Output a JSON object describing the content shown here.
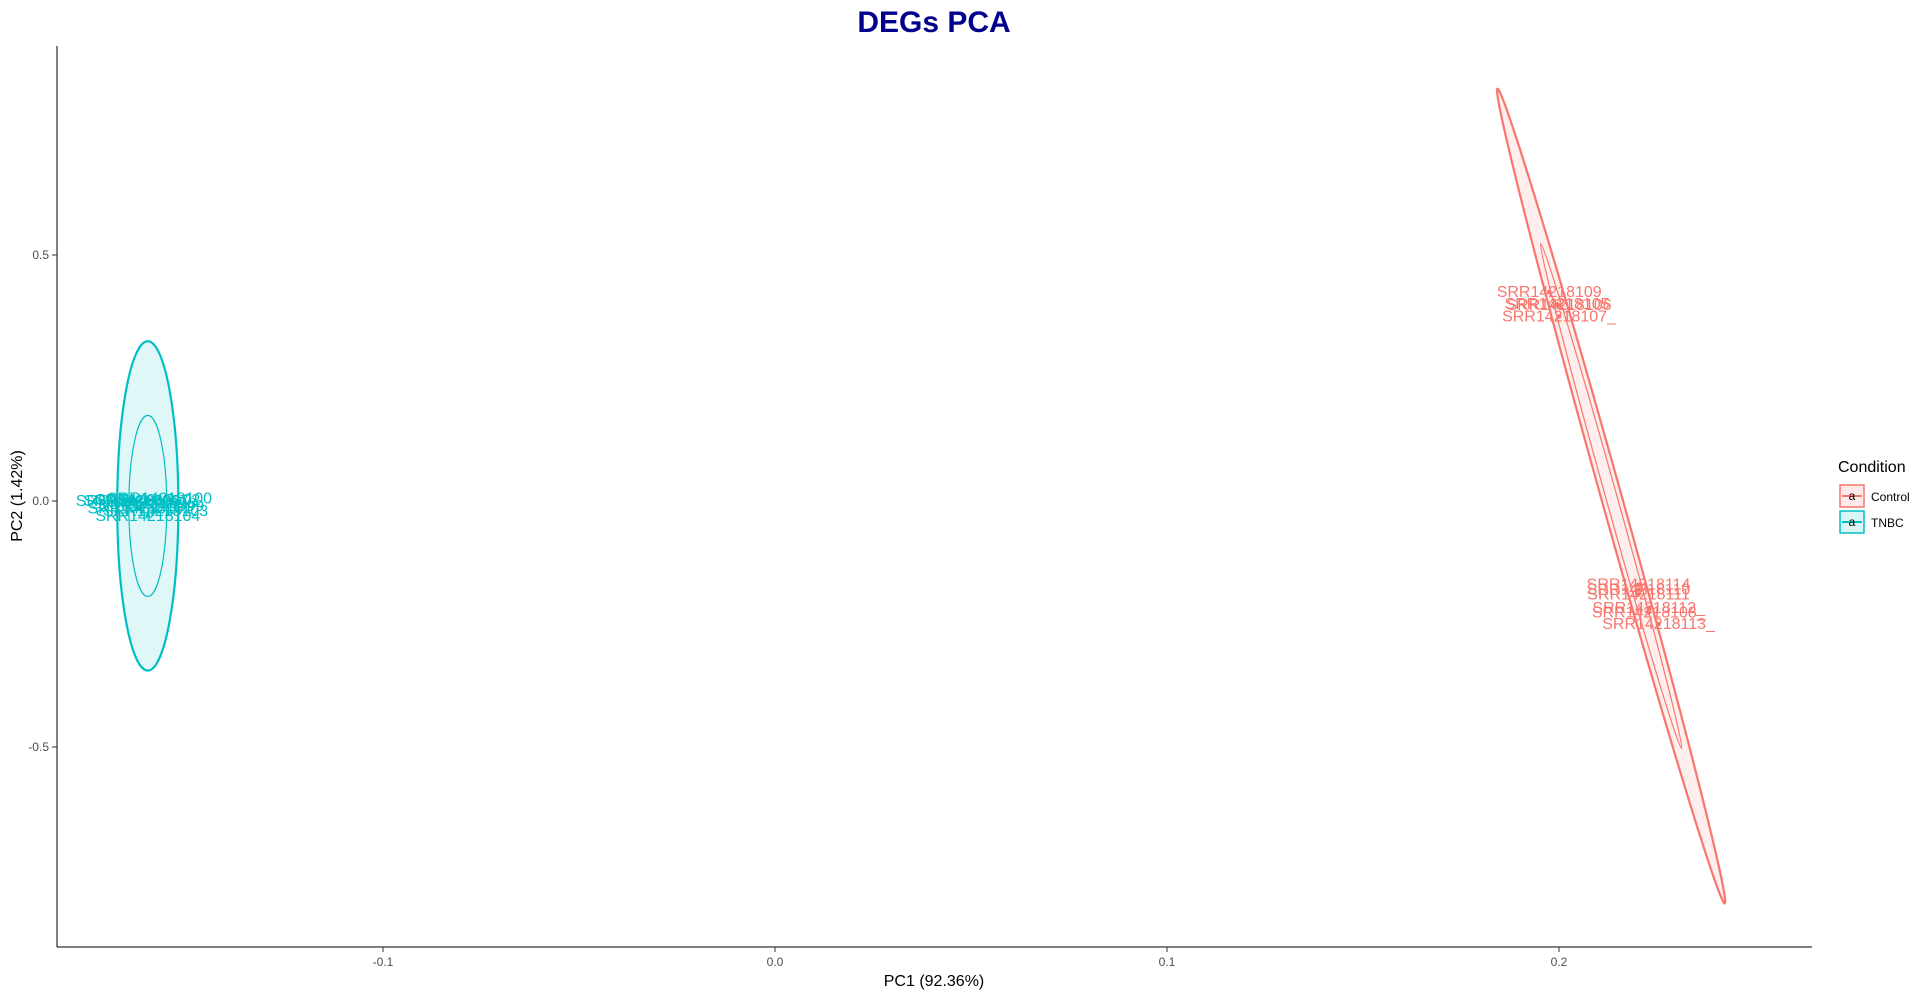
{
  "colors": {
    "title": "#00008B",
    "axis": "#000000",
    "tick_text": "#4d4d4d"
  },
  "chart_data": {
    "type": "scatter",
    "title": "DEGs PCA",
    "xlabel": "PC1 (92.36%)",
    "ylabel": "PC2 (1.42%)",
    "xlim": [
      -0.185,
      0.263
    ],
    "ylim": [
      -0.905,
      0.925
    ],
    "xticks": [
      -0.1,
      0.0,
      0.1,
      0.2
    ],
    "xtick_labels": [
      "-0.1",
      "0.0",
      "0.1",
      "0.2"
    ],
    "yticks": [
      -0.5,
      0.0,
      0.5
    ],
    "ytick_labels": [
      "-0.5",
      "0.0",
      "0.5"
    ],
    "grid": false,
    "legend": {
      "title": "Condition",
      "position": "right",
      "entries": [
        {
          "name": "Control",
          "color": "#F8766D"
        },
        {
          "name": "TNBC",
          "color": "#00BFC4"
        }
      ]
    },
    "series": [
      {
        "name": "Control",
        "color": "#F8766D",
        "ellipse": {
          "center": [
            0.2133,
            0.0
          ],
          "tip_a": [
            0.1843,
            0.838
          ],
          "tip_b": [
            0.2423,
            -0.818
          ],
          "semi_minor": 0.0026
        },
        "points": [
          {
            "label": "SRR14218109",
            "x": 0.1975,
            "y": 0.425
          },
          {
            "label": "SRR14218105",
            "x": 0.1995,
            "y": 0.4
          },
          {
            "label": "SRR14218106",
            "x": 0.2,
            "y": 0.398
          },
          {
            "label": "SRR14218107_",
            "x": 0.2,
            "y": 0.375
          },
          {
            "label": "SRR14218114",
            "x": 0.2203,
            "y": -0.17
          },
          {
            "label": "SRR14218110",
            "x": 0.2203,
            "y": -0.18
          },
          {
            "label": "SRR14218111",
            "x": 0.2203,
            "y": -0.19
          },
          {
            "label": "SRR14218112_",
            "x": 0.2229,
            "y": -0.217
          },
          {
            "label": "SRR14218108_",
            "x": 0.2229,
            "y": -0.227
          },
          {
            "label": "SRR14218113_",
            "x": 0.2254,
            "y": -0.25
          }
        ]
      },
      {
        "name": "TNBC",
        "color": "#00BFC4",
        "ellipse": {
          "center": [
            -0.16,
            -0.01
          ],
          "tip_a": [
            -0.1678,
            -0.01
          ],
          "tip_b": [
            -0.1522,
            -0.01
          ],
          "semi_minor": 0.042
        },
        "points": [
          {
            "label": "SRR14218096",
            "x": -0.165,
            "y": 0.0
          },
          {
            "label": "SRR14218097",
            "x": -0.163,
            "y": 0.0
          },
          {
            "label": "SRR14218098",
            "x": -0.161,
            "y": -0.005
          },
          {
            "label": "SRR14218099",
            "x": -0.159,
            "y": -0.01
          },
          {
            "label": "SRR14218100",
            "x": -0.157,
            "y": 0.005
          },
          {
            "label": "SRR14218101",
            "x": -0.162,
            "y": -0.015
          },
          {
            "label": "SRR14218102",
            "x": -0.16,
            "y": 0.002
          },
          {
            "label": "SRR14218103",
            "x": -0.158,
            "y": -0.02
          },
          {
            "label": "SRR14218104",
            "x": -0.16,
            "y": -0.03
          }
        ]
      }
    ]
  }
}
